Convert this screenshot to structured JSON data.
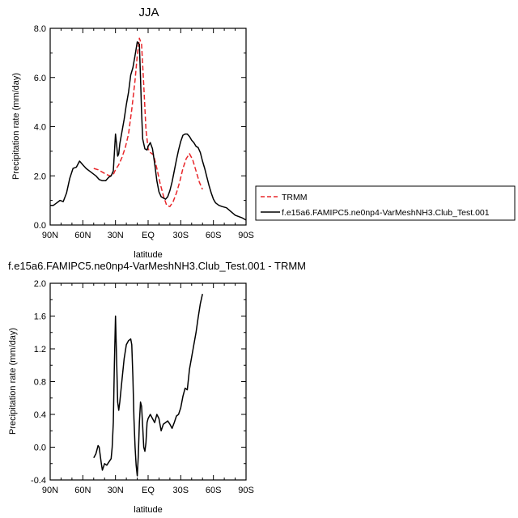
{
  "chart_data": [
    {
      "type": "line",
      "title": "JJA",
      "xlabel": "latitude",
      "ylabel": "Precipitation rate (mm/day)",
      "x_ticks": [
        {
          "value": 90,
          "label": "90N"
        },
        {
          "value": 60,
          "label": "60N"
        },
        {
          "value": 30,
          "label": "30N"
        },
        {
          "value": 0,
          "label": "EQ"
        },
        {
          "value": -30,
          "label": "30S"
        },
        {
          "value": -60,
          "label": "60S"
        },
        {
          "value": -90,
          "label": "90S"
        }
      ],
      "y_ticks": [
        "0.0",
        "2.0",
        "4.0",
        "6.0",
        "8.0"
      ],
      "xlim": [
        90,
        -90
      ],
      "ylim": [
        0,
        8
      ],
      "legend": "right",
      "series": [
        {
          "name": "TRMM",
          "color": "#e8262a",
          "dash": "dashed",
          "points": [
            [
              50,
              2.3
            ],
            [
              46,
              2.25
            ],
            [
              42,
              2.15
            ],
            [
              38,
              2.05
            ],
            [
              35,
              2.0
            ],
            [
              32,
              2.05
            ],
            [
              30,
              2.25
            ],
            [
              27,
              2.45
            ],
            [
              24,
              2.75
            ],
            [
              21,
              3.15
            ],
            [
              18,
              3.7
            ],
            [
              15,
              4.7
            ],
            [
              12,
              5.9
            ],
            [
              10,
              6.9
            ],
            [
              8,
              7.6
            ],
            [
              6,
              7.35
            ],
            [
              4,
              5.7
            ],
            [
              2,
              3.9
            ],
            [
              0,
              3.1
            ],
            [
              -2,
              2.95
            ],
            [
              -5,
              2.85
            ],
            [
              -8,
              2.3
            ],
            [
              -11,
              1.7
            ],
            [
              -14,
              1.2
            ],
            [
              -17,
              0.8
            ],
            [
              -20,
              0.75
            ],
            [
              -23,
              0.95
            ],
            [
              -26,
              1.3
            ],
            [
              -29,
              1.75
            ],
            [
              -32,
              2.3
            ],
            [
              -35,
              2.7
            ],
            [
              -38,
              2.9
            ],
            [
              -41,
              2.65
            ],
            [
              -44,
              2.2
            ],
            [
              -47,
              1.75
            ],
            [
              -50,
              1.45
            ]
          ]
        },
        {
          "name": "f.e15a6.FAMIPC5.ne0np4-VarMeshNH3.Club_Test.001",
          "color": "#000000",
          "dash": "solid",
          "points": [
            [
              90,
              0.8
            ],
            [
              87,
              0.8
            ],
            [
              84,
              0.9
            ],
            [
              81,
              1.0
            ],
            [
              78,
              0.95
            ],
            [
              75,
              1.3
            ],
            [
              72,
              1.9
            ],
            [
              69,
              2.3
            ],
            [
              66,
              2.35
            ],
            [
              63,
              2.6
            ],
            [
              60,
              2.45
            ],
            [
              57,
              2.3
            ],
            [
              54,
              2.2
            ],
            [
              51,
              2.1
            ],
            [
              48,
              2.0
            ],
            [
              45,
              1.85
            ],
            [
              42,
              1.8
            ],
            [
              39,
              1.8
            ],
            [
              36,
              1.95
            ],
            [
              34,
              2.0
            ],
            [
              32,
              2.2
            ],
            [
              30,
              3.7
            ],
            [
              29,
              3.3
            ],
            [
              28,
              2.8
            ],
            [
              27,
              2.9
            ],
            [
              26,
              3.3
            ],
            [
              24,
              3.8
            ],
            [
              22,
              4.3
            ],
            [
              20,
              4.9
            ],
            [
              18,
              5.4
            ],
            [
              16,
              6.1
            ],
            [
              14,
              6.4
            ],
            [
              12,
              6.9
            ],
            [
              10,
              7.45
            ],
            [
              8,
              7.35
            ],
            [
              7,
              6.0
            ],
            [
              6,
              4.6
            ],
            [
              5,
              3.5
            ],
            [
              3,
              3.1
            ],
            [
              1,
              3.05
            ],
            [
              0,
              3.2
            ],
            [
              -2,
              3.35
            ],
            [
              -4,
              3.1
            ],
            [
              -6,
              2.5
            ],
            [
              -8,
              1.8
            ],
            [
              -10,
              1.35
            ],
            [
              -12,
              1.15
            ],
            [
              -14,
              1.1
            ],
            [
              -16,
              1.05
            ],
            [
              -18,
              1.15
            ],
            [
              -20,
              1.4
            ],
            [
              -22,
              1.75
            ],
            [
              -24,
              2.2
            ],
            [
              -26,
              2.65
            ],
            [
              -28,
              3.05
            ],
            [
              -30,
              3.4
            ],
            [
              -32,
              3.65
            ],
            [
              -34,
              3.7
            ],
            [
              -36,
              3.7
            ],
            [
              -38,
              3.6
            ],
            [
              -40,
              3.45
            ],
            [
              -42,
              3.35
            ],
            [
              -44,
              3.2
            ],
            [
              -46,
              3.15
            ],
            [
              -48,
              2.95
            ],
            [
              -50,
              2.6
            ],
            [
              -52,
              2.3
            ],
            [
              -54,
              1.95
            ],
            [
              -56,
              1.6
            ],
            [
              -58,
              1.3
            ],
            [
              -60,
              1.05
            ],
            [
              -62,
              0.9
            ],
            [
              -65,
              0.8
            ],
            [
              -68,
              0.75
            ],
            [
              -72,
              0.7
            ],
            [
              -76,
              0.55
            ],
            [
              -80,
              0.4
            ],
            [
              -83,
              0.35
            ],
            [
              -86,
              0.3
            ],
            [
              -88,
              0.25
            ],
            [
              -90,
              0.2
            ]
          ]
        }
      ]
    },
    {
      "type": "line",
      "title": "f.e15a6.FAMIPC5.ne0np4-VarMeshNH3.Club_Test.001 - TRMM",
      "xlabel": "latitude",
      "ylabel": "Precipitation rate (mm/day)",
      "x_ticks": [
        {
          "value": 90,
          "label": "90N"
        },
        {
          "value": 60,
          "label": "60N"
        },
        {
          "value": 30,
          "label": "30N"
        },
        {
          "value": 0,
          "label": "EQ"
        },
        {
          "value": -30,
          "label": "30S"
        },
        {
          "value": -60,
          "label": "60S"
        },
        {
          "value": -90,
          "label": "90S"
        }
      ],
      "y_ticks": [
        "-0.4",
        "0.0",
        "0.4",
        "0.8",
        "1.2",
        "1.6",
        "2.0"
      ],
      "xlim": [
        90,
        -90
      ],
      "ylim": [
        -0.4,
        2.0
      ],
      "series": [
        {
          "name": "",
          "color": "#000000",
          "dash": "solid",
          "points": [
            [
              50,
              -0.13
            ],
            [
              48,
              -0.08
            ],
            [
              46,
              0.02
            ],
            [
              45,
              0.0
            ],
            [
              43,
              -0.2
            ],
            [
              42,
              -0.28
            ],
            [
              40,
              -0.2
            ],
            [
              38,
              -0.22
            ],
            [
              36,
              -0.18
            ],
            [
              34,
              -0.14
            ],
            [
              33,
              0.0
            ],
            [
              32,
              0.3
            ],
            [
              31,
              1.0
            ],
            [
              30,
              1.6
            ],
            [
              29,
              1.1
            ],
            [
              28,
              0.55
            ],
            [
              27,
              0.45
            ],
            [
              26,
              0.55
            ],
            [
              24,
              0.82
            ],
            [
              22,
              1.08
            ],
            [
              20,
              1.25
            ],
            [
              18,
              1.3
            ],
            [
              16,
              1.32
            ],
            [
              15,
              1.25
            ],
            [
              14,
              0.85
            ],
            [
              13,
              0.35
            ],
            [
              12,
              0.0
            ],
            [
              11,
              -0.22
            ],
            [
              10,
              -0.35
            ],
            [
              9,
              -0.1
            ],
            [
              8,
              0.3
            ],
            [
              7,
              0.55
            ],
            [
              6,
              0.5
            ],
            [
              5,
              0.25
            ],
            [
              4,
              0.0
            ],
            [
              3,
              -0.05
            ],
            [
              2,
              0.05
            ],
            [
              1,
              0.3
            ],
            [
              0,
              0.35
            ],
            [
              -2,
              0.4
            ],
            [
              -4,
              0.35
            ],
            [
              -6,
              0.3
            ],
            [
              -8,
              0.4
            ],
            [
              -10,
              0.35
            ],
            [
              -12,
              0.2
            ],
            [
              -14,
              0.28
            ],
            [
              -16,
              0.3
            ],
            [
              -18,
              0.32
            ],
            [
              -20,
              0.28
            ],
            [
              -22,
              0.23
            ],
            [
              -24,
              0.3
            ],
            [
              -26,
              0.38
            ],
            [
              -28,
              0.4
            ],
            [
              -30,
              0.48
            ],
            [
              -32,
              0.62
            ],
            [
              -34,
              0.72
            ],
            [
              -36,
              0.7
            ],
            [
              -38,
              0.95
            ],
            [
              -40,
              1.1
            ],
            [
              -42,
              1.25
            ],
            [
              -44,
              1.4
            ],
            [
              -46,
              1.58
            ],
            [
              -48,
              1.75
            ],
            [
              -50,
              1.87
            ]
          ]
        }
      ]
    }
  ]
}
